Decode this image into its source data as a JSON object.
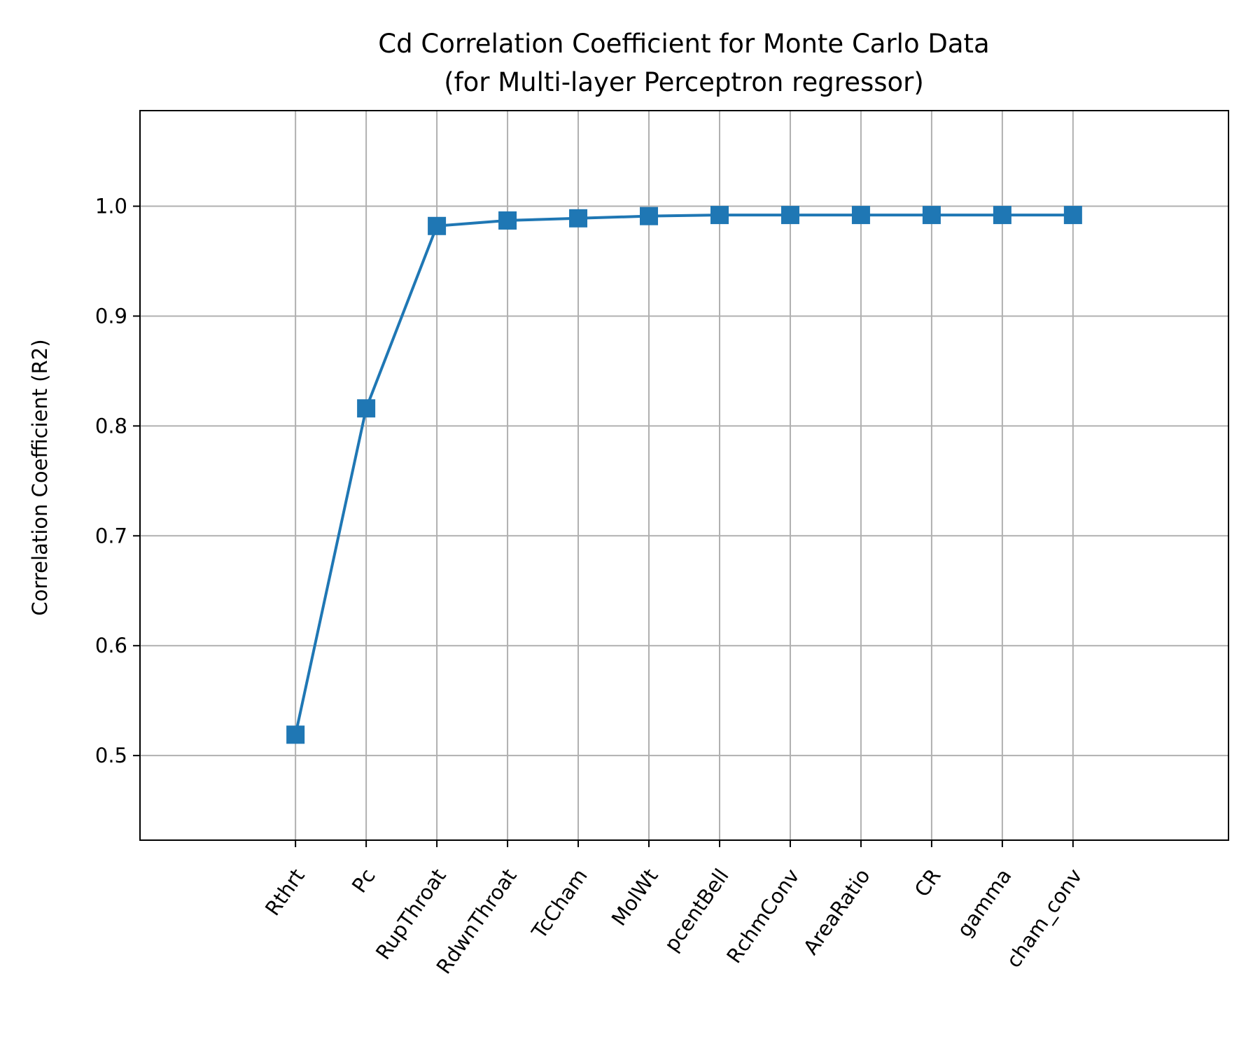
{
  "chart_data": {
    "type": "line",
    "title": "Cd Correlation Coefficient for Monte Carlo Data",
    "subtitle": "(for Multi-layer Perceptron regressor)",
    "xlabel": "",
    "ylabel": "Correlation Coefficient (R2)",
    "categories": [
      "Rthrt",
      "Pc",
      "RupThroat",
      "RdwnThroat",
      "TcCham",
      "MolWt",
      "pcentBell",
      "RchmConv",
      "AreaRatio",
      "CR",
      "gamma",
      "cham_conv"
    ],
    "series": [
      {
        "values": [
          0.519,
          0.816,
          0.982,
          0.987,
          0.989,
          0.991,
          0.992,
          0.992,
          0.992,
          0.992,
          0.992,
          0.992
        ],
        "color": "#1f77b4",
        "marker": "square"
      }
    ],
    "ylim": [
      0.423,
      1.087
    ],
    "yticks": [
      0.5,
      0.6,
      0.7,
      0.8,
      0.9,
      1.0
    ],
    "ytick_labels": [
      "0.5",
      "0.6",
      "0.7",
      "0.8",
      "0.9",
      "1.0"
    ],
    "xlim": [
      -2.2,
      13.2
    ],
    "x_tick_rotation": 55,
    "grid": true,
    "grid_color": "#b0b0b0",
    "legend": false
  }
}
